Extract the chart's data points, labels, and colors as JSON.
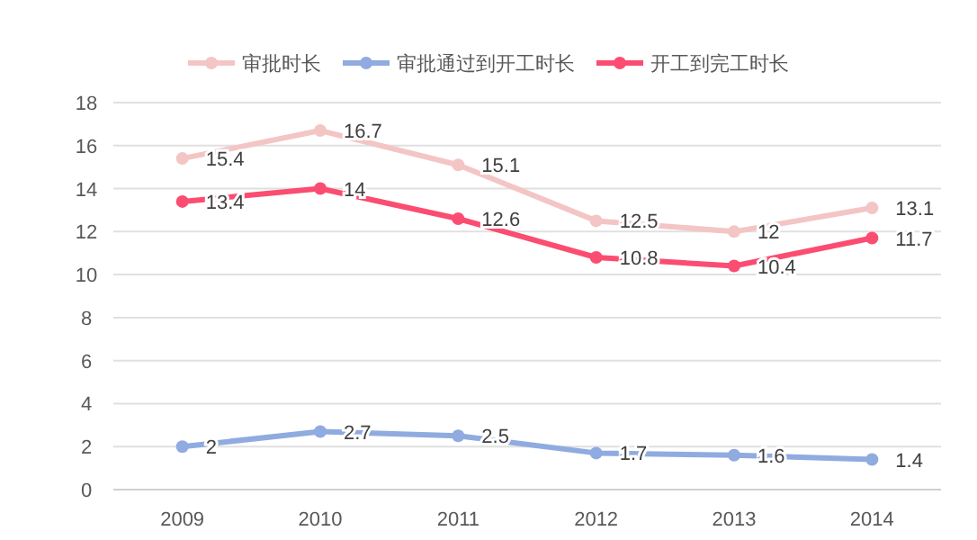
{
  "chart_data": {
    "type": "line",
    "categories": [
      "2009",
      "2010",
      "2011",
      "2012",
      "2013",
      "2014"
    ],
    "series": [
      {
        "name": "审批时长",
        "color": "#f4c5c5",
        "values": [
          15.4,
          16.7,
          15.1,
          12.5,
          12,
          13.1
        ]
      },
      {
        "name": "审批通过到开工时长",
        "color": "#8fabe0",
        "values": [
          2,
          2.7,
          2.5,
          1.7,
          1.6,
          1.4
        ]
      },
      {
        "name": "开工到完工时长",
        "color": "#fb4d71",
        "values": [
          13.4,
          14,
          12.6,
          10.8,
          10.4,
          11.7
        ]
      }
    ],
    "ylim": [
      0,
      18
    ],
    "yticks": [
      0,
      2,
      4,
      6,
      8,
      10,
      12,
      14,
      16,
      18
    ],
    "grid": "y",
    "legend": "top",
    "marker": "circle",
    "data_labels": true
  }
}
